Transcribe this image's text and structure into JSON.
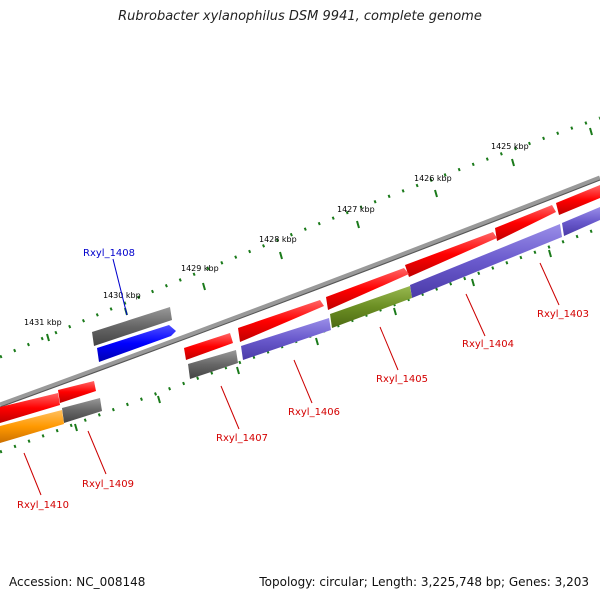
{
  "title": "Rubrobacter xylanophilus DSM 9941, complete genome",
  "footer": {
    "accession": "Accession: NC_008148",
    "summary": "Topology: circular; Length: 3,225,748 bp; Genes: 3,203"
  },
  "ruler": [
    {
      "label": "1425 kbp"
    },
    {
      "label": "1426 kbp"
    },
    {
      "label": "1427 kbp"
    },
    {
      "label": "1428 kbp"
    },
    {
      "label": "1429 kbp"
    },
    {
      "label": "1430 kbp"
    },
    {
      "label": "1431 kbp"
    }
  ],
  "genes": [
    {
      "label": "Rxyl_1403",
      "color": "#d40000"
    },
    {
      "label": "Rxyl_1404",
      "color": "#d40000"
    },
    {
      "label": "Rxyl_1405",
      "color": "#d40000"
    },
    {
      "label": "Rxyl_1406",
      "color": "#d40000"
    },
    {
      "label": "Rxyl_1407",
      "color": "#d40000"
    },
    {
      "label": "Rxyl_1408",
      "color": "#0000cc"
    },
    {
      "label": "Rxyl_1409",
      "color": "#d40000"
    },
    {
      "label": "Rxyl_1410",
      "color": "#d40000"
    }
  ],
  "colors": {
    "cds": "#ff0000",
    "gene": "#6a5acd",
    "pseudo": "#6b8e23",
    "rna": "#ff9900",
    "other": "#666666",
    "highlight": "#0000ff",
    "backbone": "#888888",
    "ticks": "#1a7a1a"
  }
}
